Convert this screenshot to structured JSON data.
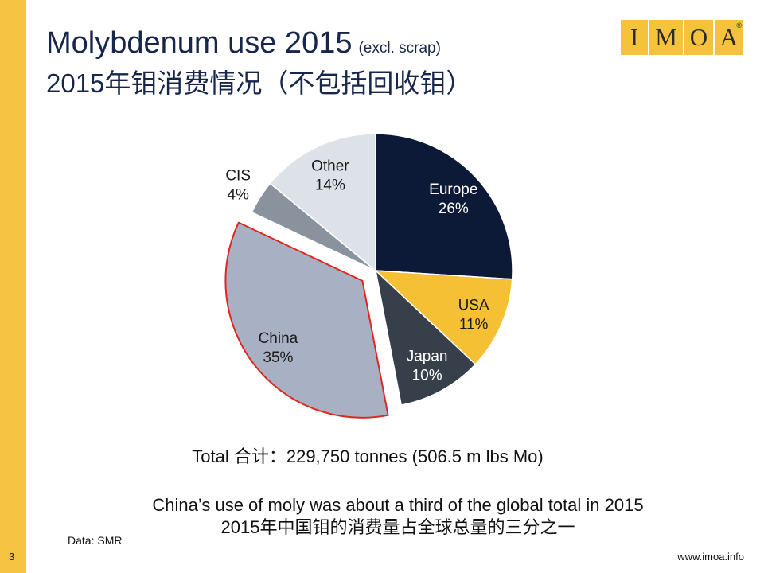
{
  "header": {
    "title": "Molybdenum use 2015",
    "title_note": "(excl. scrap)",
    "subtitle": "2015年钼消费情况（不包括回收钼）"
  },
  "logo": {
    "letters": [
      "I",
      "M",
      "O",
      "A"
    ],
    "mark": "®"
  },
  "chart_data": {
    "type": "pie",
    "slices": [
      {
        "label": "Europe",
        "value": 26,
        "value_label": "26%",
        "color": "#0d1a37",
        "text_color": "#ffffff"
      },
      {
        "label": "USA",
        "value": 11,
        "value_label": "11%",
        "color": "#f5c033",
        "text_color": "#1a1a1a"
      },
      {
        "label": "Japan",
        "value": 10,
        "value_label": "10%",
        "color": "#37404a",
        "text_color": "#ffffff"
      },
      {
        "label": "China",
        "value": 35,
        "value_label": "35%",
        "color": "#a8b1c3",
        "text_color": "#1a1a1a",
        "exploded": true,
        "outline": "#e0261f"
      },
      {
        "label": "CIS",
        "value": 4,
        "value_label": "4%",
        "color": "#8a929d",
        "text_color": "#1a1a1a"
      },
      {
        "label": "Other",
        "value": 14,
        "value_label": "14%",
        "color": "#dde1e8",
        "text_color": "#1a1a1a"
      }
    ]
  },
  "total": "Total 合计：229,750 tonnes (506.5 m lbs Mo)",
  "caption": {
    "en": "China’s use of moly was about a third of the global total in 2015",
    "cn": "2015年中国钼的消费量占全球总量的三分之一"
  },
  "footer": {
    "source": "Data: SMR",
    "page_number": "3",
    "website": "www.imoa.info"
  },
  "colors": {
    "accent_bar": "#f6c343",
    "title": "#17264a",
    "logo_box": "#f5c33b"
  }
}
